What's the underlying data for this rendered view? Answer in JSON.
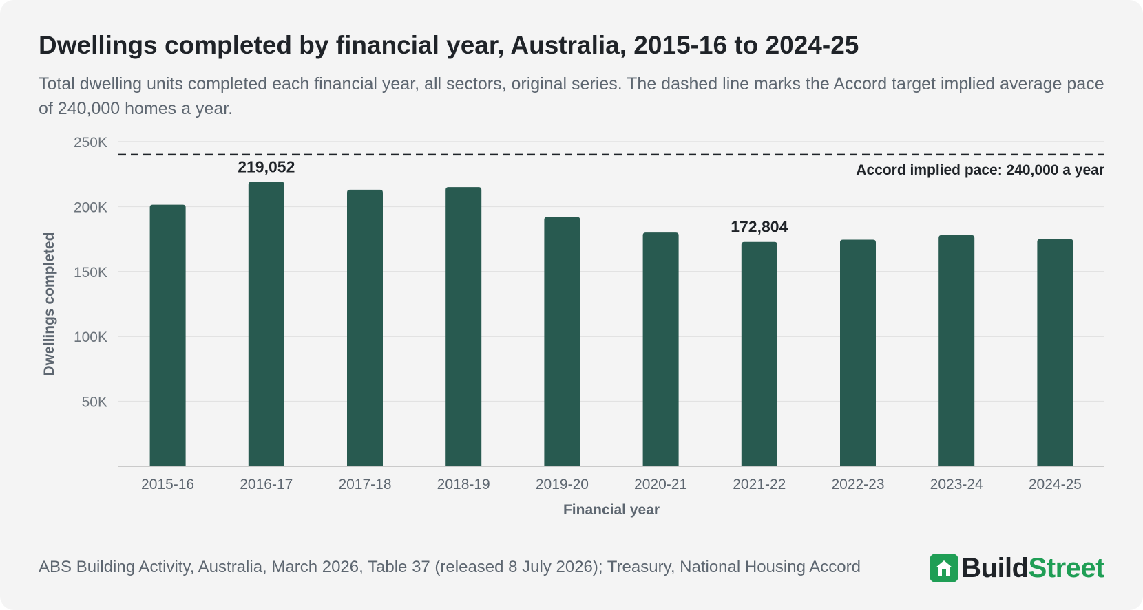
{
  "brand": {
    "part1": "Build",
    "part2": "Street",
    "accent": "#1f9e55"
  },
  "footer": {
    "source": "ABS Building Activity, Australia, March 2026, Table 37 (released 8 July 2026); Treasury, National Housing Accord"
  },
  "chart_data": {
    "type": "bar",
    "title": "Dwellings completed by financial year, Australia, 2015-16 to 2024-25",
    "subtitle": "Total dwelling units completed each financial year, all sectors, original series. The dashed line marks the Accord target implied average pace of 240,000 homes a year.",
    "xlabel": "Financial year",
    "ylabel": "Dwellings completed",
    "categories": [
      "2015-16",
      "2016-17",
      "2017-18",
      "2018-19",
      "2019-20",
      "2020-21",
      "2021-22",
      "2022-23",
      "2023-24",
      "2024-25"
    ],
    "values": [
      201500,
      219052,
      213000,
      215000,
      192000,
      180000,
      172804,
      174500,
      178000,
      175000
    ],
    "ylim": [
      0,
      250000
    ],
    "yticks": [
      50000,
      100000,
      150000,
      200000,
      250000
    ],
    "ytick_labels": [
      "50K",
      "100K",
      "150K",
      "200K",
      "250K"
    ],
    "grid": true,
    "bar_color": "#285a50",
    "data_labels": [
      {
        "category": "2016-17",
        "text": "219,052"
      },
      {
        "category": "2021-22",
        "text": "172,804"
      }
    ],
    "reference_line": {
      "value": 240000,
      "label": "Accord implied pace: 240,000 a year",
      "style": "dashed"
    }
  }
}
